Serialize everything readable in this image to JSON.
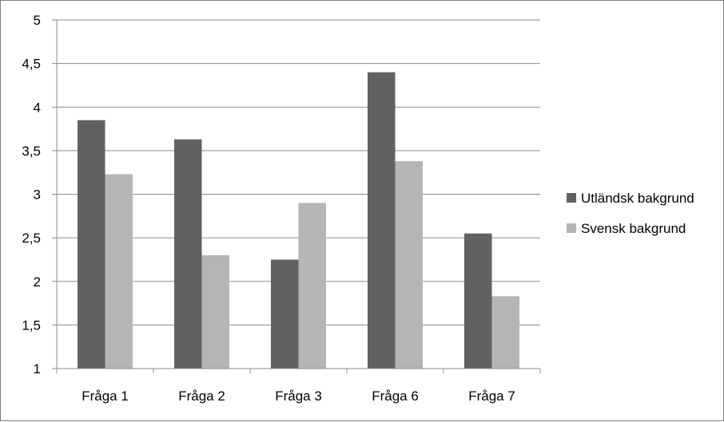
{
  "chart_data": {
    "type": "bar",
    "categories": [
      "Fråga 1",
      "Fråga 2",
      "Fråga 3",
      "Fråga 6",
      "Fråga 7"
    ],
    "series": [
      {
        "name": "Utländsk bakgrund",
        "color": "#616161",
        "values": [
          3.85,
          3.63,
          2.25,
          4.4,
          2.55
        ]
      },
      {
        "name": "Svensk bakgrund",
        "color": "#b5b5b5",
        "values": [
          3.23,
          2.3,
          2.9,
          3.38,
          1.83
        ]
      }
    ],
    "y_ticks": [
      "1",
      "1,5",
      "2",
      "2,5",
      "3",
      "3,5",
      "4",
      "4,5",
      "5"
    ],
    "ylim": [
      1,
      5
    ],
    "grid": true,
    "legend_position": "right"
  }
}
